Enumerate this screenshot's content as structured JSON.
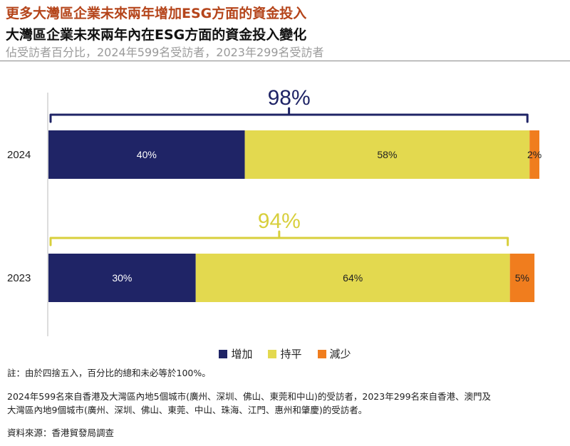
{
  "header": {
    "title": "更多大灣區企業未來兩年增加ESG方面的資金投入",
    "subtitle": "大灣區企業未來兩年內在ESG方面的資金投入變化",
    "unit": "佔受訪者百分比，2024年599名受訪者，2023年299名受訪者"
  },
  "chart_data": {
    "type": "bar",
    "orientation": "horizontal",
    "stacked": true,
    "categories": [
      "2024",
      "2023"
    ],
    "series": [
      {
        "name": "增加",
        "values": [
          40,
          30
        ],
        "labels": [
          "40%",
          "30%"
        ],
        "color": "#1f2466"
      },
      {
        "name": "持平",
        "values": [
          58,
          64
        ],
        "labels": [
          "58%",
          "64%"
        ],
        "color": "#e3d94f"
      },
      {
        "name": "減少",
        "values": [
          2,
          5
        ],
        "labels": [
          "2%",
          "5%"
        ],
        "color": "#f07d1e"
      }
    ],
    "annotations": [
      {
        "category": "2024",
        "label": "98%",
        "value": 98,
        "color": "#1f2466"
      },
      {
        "category": "2023",
        "label": "94%",
        "value": 94,
        "color": "#d8cf3c"
      }
    ],
    "xlim": [
      0,
      100
    ],
    "legend_position": "bottom"
  },
  "legend": [
    {
      "label": "增加",
      "color": "#1f2466"
    },
    {
      "label": "持平",
      "color": "#e3d94f"
    },
    {
      "label": "減少",
      "color": "#f07d1e"
    }
  ],
  "notes": {
    "rounding": "註：由於四捨五入，百分比的總和未必等於100%。",
    "respondents_line1": "2024年599名來自香港及大灣區內地5個城市(廣州、深圳、佛山、東莞和中山)的受訪者，2023年299名來自香港、澳門及",
    "respondents_line2": "大灣區內地9個城市(廣州、深圳、佛山、東莞、中山、珠海、江門、惠州和肇慶)的受訪者。",
    "source": "資料來源：香港貿發局調查"
  }
}
